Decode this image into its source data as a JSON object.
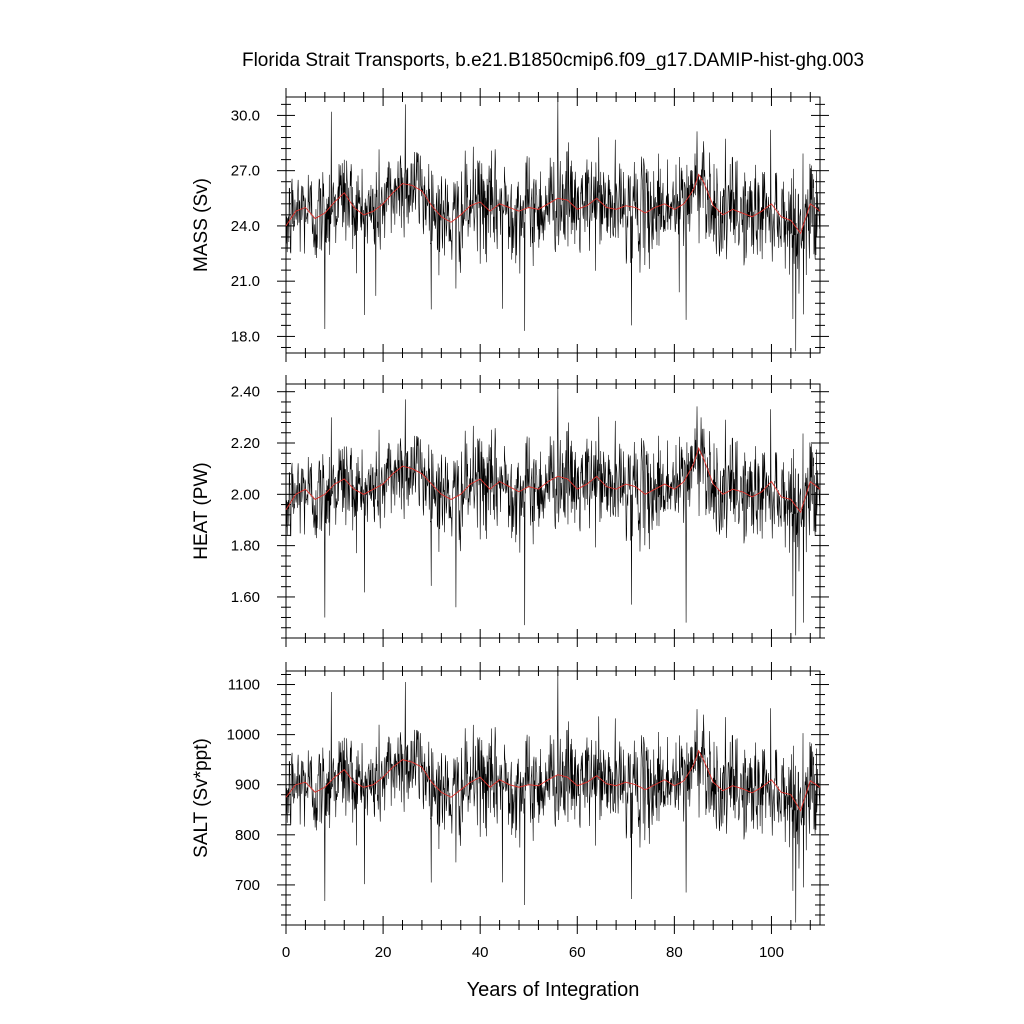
{
  "title": "Florida Strait Transports, b.e21.B1850cmip6.f09_g17.DAMIP-hist-ghg.003",
  "chart_data": [
    {
      "type": "line",
      "name": "mass",
      "ylabel": "MASS (Sv)",
      "xlabel": "",
      "xlim": [
        0,
        110
      ],
      "ylim": [
        17.1,
        31.0
      ],
      "yticks": [
        18.0,
        21.0,
        24.0,
        27.0,
        30.0
      ],
      "ytick_labels": [
        "18.0",
        "21.0",
        "24.0",
        "27.0",
        "30.0"
      ],
      "series_style": {
        "raw_color": "#000000",
        "smooth_color": "#e0302a"
      },
      "raw": {
        "mean": 24.9,
        "std": 1.35,
        "min": 17.2,
        "max": 30.8,
        "extremes": [
          [
            8,
            18.4
          ],
          [
            9.3,
            30.2
          ],
          [
            18.5,
            20.2
          ],
          [
            24.6,
            30.6
          ],
          [
            35,
            20.6
          ],
          [
            44.6,
            19.5
          ],
          [
            49.2,
            18.3
          ],
          [
            56,
            30.8
          ],
          [
            71.2,
            18.6
          ],
          [
            81,
            20.4
          ],
          [
            82.4,
            18.9
          ],
          [
            86,
            28.6
          ],
          [
            105,
            17.2
          ],
          [
            106.6,
            19.2
          ]
        ]
      },
      "smooth": {
        "x": [
          0,
          2,
          4,
          6,
          8,
          10,
          12,
          14,
          16,
          18,
          20,
          22,
          24,
          26,
          28,
          30,
          32,
          34,
          36,
          38,
          40,
          42,
          44,
          46,
          48,
          50,
          52,
          54,
          56,
          58,
          60,
          62,
          64,
          66,
          68,
          70,
          72,
          74,
          76,
          78,
          80,
          82,
          84,
          85,
          86,
          88,
          90,
          92,
          94,
          96,
          98,
          100,
          102,
          104,
          106,
          108,
          110
        ],
        "y": [
          24.0,
          24.8,
          25.0,
          24.4,
          24.7,
          25.3,
          25.8,
          25.0,
          24.6,
          24.8,
          25.2,
          25.8,
          26.3,
          26.2,
          25.9,
          25.1,
          24.5,
          24.2,
          24.6,
          25.1,
          25.3,
          24.8,
          25.2,
          25.0,
          24.8,
          25.0,
          24.9,
          25.2,
          25.5,
          25.4,
          24.9,
          25.1,
          25.5,
          25.0,
          24.9,
          25.1,
          25.0,
          24.7,
          25.0,
          25.2,
          24.9,
          25.2,
          26.0,
          26.8,
          26.4,
          25.1,
          24.6,
          24.9,
          24.7,
          24.5,
          24.8,
          25.2,
          24.5,
          24.3,
          23.6,
          25.2,
          24.8
        ]
      }
    },
    {
      "type": "line",
      "name": "heat",
      "ylabel": "HEAT (PW)",
      "xlabel": "",
      "xlim": [
        0,
        110
      ],
      "ylim": [
        1.44,
        2.43
      ],
      "yticks": [
        1.6,
        1.8,
        2.0,
        2.2,
        2.4
      ],
      "ytick_labels": [
        "1.60",
        "1.80",
        "2.00",
        "2.20",
        "2.40"
      ],
      "series_style": {
        "raw_color": "#000000",
        "smooth_color": "#e0302a"
      },
      "raw": {
        "mean": 2.03,
        "std": 0.095,
        "min": 1.45,
        "max": 2.42,
        "extremes": [
          [
            8,
            1.52
          ],
          [
            9.3,
            2.3
          ],
          [
            24.6,
            2.37
          ],
          [
            35,
            1.56
          ],
          [
            49.2,
            1.49
          ],
          [
            56,
            2.42
          ],
          [
            71.2,
            1.57
          ],
          [
            82.4,
            1.5
          ],
          [
            85.5,
            2.3
          ],
          [
            105,
            1.45
          ],
          [
            106.6,
            1.5
          ]
        ]
      },
      "smooth": {
        "x": [
          0,
          2,
          4,
          6,
          8,
          10,
          12,
          14,
          16,
          18,
          20,
          22,
          24,
          26,
          28,
          30,
          32,
          34,
          36,
          38,
          40,
          42,
          44,
          46,
          48,
          50,
          52,
          54,
          56,
          58,
          60,
          62,
          64,
          66,
          68,
          70,
          72,
          74,
          76,
          78,
          80,
          82,
          84,
          85,
          86,
          88,
          90,
          92,
          94,
          96,
          98,
          100,
          102,
          104,
          106,
          108,
          110
        ],
        "y": [
          1.94,
          2.0,
          2.02,
          1.98,
          2.0,
          2.04,
          2.06,
          2.02,
          2.0,
          2.02,
          2.04,
          2.08,
          2.11,
          2.1,
          2.08,
          2.04,
          2.0,
          1.98,
          2.0,
          2.04,
          2.06,
          2.02,
          2.05,
          2.03,
          2.01,
          2.03,
          2.02,
          2.05,
          2.07,
          2.06,
          2.02,
          2.04,
          2.07,
          2.03,
          2.02,
          2.04,
          2.03,
          2.0,
          2.02,
          2.04,
          2.02,
          2.05,
          2.12,
          2.18,
          2.14,
          2.04,
          2.0,
          2.02,
          2.01,
          1.99,
          2.01,
          2.05,
          1.99,
          1.98,
          1.93,
          2.05,
          2.02
        ]
      }
    },
    {
      "type": "line",
      "name": "salt",
      "ylabel": "SALT (Sv*ppt)",
      "xlabel": "Years of Integration",
      "xlim": [
        0,
        110
      ],
      "ylim": [
        620,
        1127
      ],
      "yticks": [
        700,
        800,
        900,
        1000,
        1100
      ],
      "ytick_labels": [
        "700",
        "800",
        "900",
        "1000",
        "1100"
      ],
      "xticks": [
        0,
        20,
        40,
        60,
        80,
        100
      ],
      "xtick_labels": [
        "0",
        "20",
        "40",
        "60",
        "80",
        "100"
      ],
      "series_style": {
        "raw_color": "#000000",
        "smooth_color": "#e0302a"
      },
      "raw": {
        "mean": 900,
        "std": 48,
        "min": 625,
        "max": 1120,
        "extremes": [
          [
            8,
            668
          ],
          [
            9.3,
            1085
          ],
          [
            24.6,
            1105
          ],
          [
            35,
            745
          ],
          [
            44.6,
            705
          ],
          [
            49.2,
            660
          ],
          [
            56,
            1120
          ],
          [
            71.2,
            672
          ],
          [
            82.4,
            685
          ],
          [
            86,
            1040
          ],
          [
            105,
            625
          ],
          [
            106.6,
            695
          ]
        ]
      },
      "smooth": {
        "x": [
          0,
          2,
          4,
          6,
          8,
          10,
          12,
          14,
          16,
          18,
          20,
          22,
          24,
          26,
          28,
          30,
          32,
          34,
          36,
          38,
          40,
          42,
          44,
          46,
          48,
          50,
          52,
          54,
          56,
          58,
          60,
          62,
          64,
          66,
          68,
          70,
          72,
          74,
          76,
          78,
          80,
          82,
          84,
          85,
          86,
          88,
          90,
          92,
          94,
          96,
          98,
          100,
          102,
          104,
          106,
          108,
          110
        ],
        "y": [
          875,
          900,
          905,
          885,
          895,
          915,
          930,
          905,
          895,
          900,
          915,
          935,
          950,
          945,
          935,
          905,
          885,
          875,
          890,
          905,
          915,
          895,
          910,
          900,
          895,
          900,
          898,
          910,
          920,
          915,
          898,
          905,
          918,
          902,
          898,
          905,
          900,
          890,
          900,
          910,
          898,
          908,
          940,
          968,
          950,
          905,
          888,
          898,
          892,
          884,
          895,
          910,
          885,
          880,
          848,
          908,
          895
        ]
      }
    }
  ]
}
